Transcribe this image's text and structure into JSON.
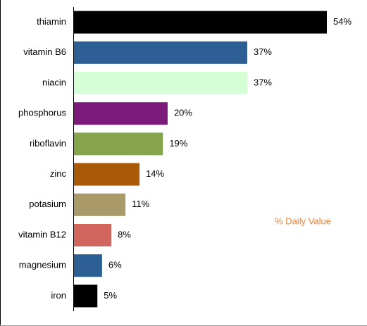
{
  "chart_data": {
    "type": "bar",
    "orientation": "horizontal",
    "categories": [
      "thiamin",
      "vitamin B6",
      "niacin",
      "phosphorus",
      "riboflavin",
      "zinc",
      "potasium",
      "vitamin B12",
      "magnesium",
      "iron"
    ],
    "values": [
      54,
      37,
      37,
      20,
      19,
      14,
      11,
      8,
      6,
      5
    ],
    "value_labels": [
      "54%",
      "37%",
      "37%",
      "20%",
      "19%",
      "14%",
      "11%",
      "8%",
      "6%",
      "5%"
    ],
    "colors": [
      "#000000",
      "#2e5f94",
      "#d6fed6",
      "#7b1a7b",
      "#86a44c",
      "#a85a06",
      "#aa9a6a",
      "#d2665f",
      "#2e5f94",
      "#000000"
    ],
    "annotation": "% Daily Value",
    "annotation_color": "#e8843a"
  }
}
